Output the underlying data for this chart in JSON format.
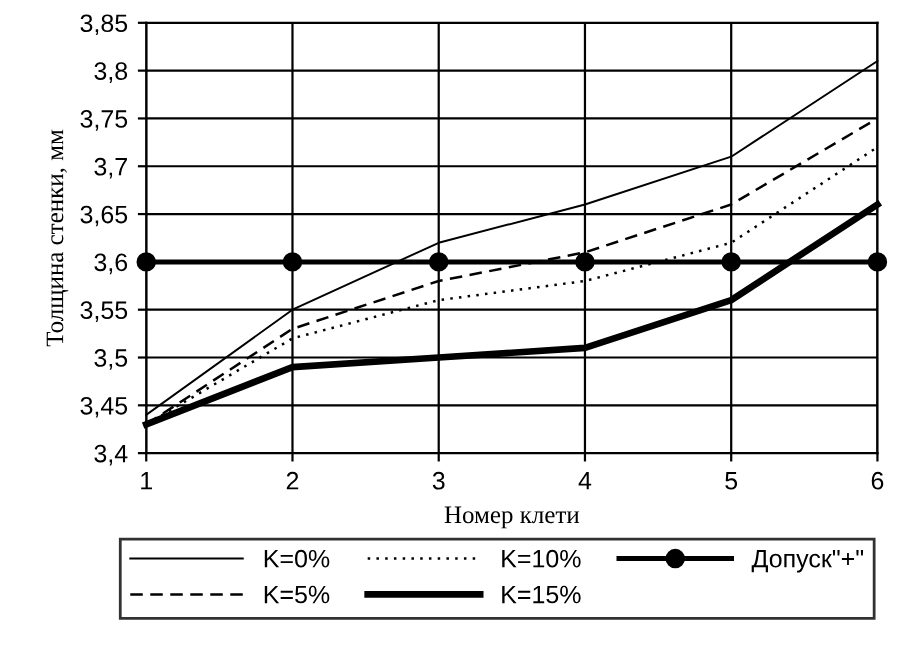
{
  "chart_data": {
    "type": "line",
    "xlabel": "Номер клети",
    "ylabel": "Толщина стенки, мм",
    "x": [
      1,
      2,
      3,
      4,
      5,
      6
    ],
    "xlim": [
      1,
      6
    ],
    "xticks": [
      1,
      2,
      3,
      4,
      5,
      6
    ],
    "ylim": [
      3.4,
      3.85
    ],
    "yticks": [
      {
        "value": 3.4,
        "label": "3,4"
      },
      {
        "value": 3.45,
        "label": "3,45"
      },
      {
        "value": 3.5,
        "label": "3,5"
      },
      {
        "value": 3.55,
        "label": "3,55"
      },
      {
        "value": 3.6,
        "label": "3,6"
      },
      {
        "value": 3.65,
        "label": "3,65"
      },
      {
        "value": 3.7,
        "label": "3,7"
      },
      {
        "value": 3.75,
        "label": "3,75"
      },
      {
        "value": 3.8,
        "label": "3,8"
      },
      {
        "value": 3.85,
        "label": "3,85"
      }
    ],
    "grid": true,
    "legend": "bottom",
    "marker": "none",
    "series": [
      {
        "name": "K=0%",
        "color": "#000000",
        "line_style": "solid",
        "values": [
          3.44,
          3.55,
          3.62,
          3.66,
          3.71,
          3.81
        ]
      },
      {
        "name": "K=5%",
        "color": "#000000",
        "line_style": "dashed",
        "values": [
          3.43,
          3.53,
          3.58,
          3.61,
          3.66,
          3.75
        ]
      },
      {
        "name": "K=10%",
        "color": "#000000",
        "line_style": "dotted",
        "values": [
          3.43,
          3.52,
          3.56,
          3.58,
          3.62,
          3.72
        ]
      },
      {
        "name": "K=15%",
        "color": "#000000",
        "line_style": "solid",
        "values": [
          3.43,
          3.49,
          3.5,
          3.51,
          3.56,
          3.66
        ]
      },
      {
        "name": "Допуск\"+\"",
        "color": "#000000",
        "line_style": "solid",
        "marker": "circle",
        "values": [
          3.6,
          3.6,
          3.6,
          3.6,
          3.6,
          3.6
        ]
      }
    ]
  }
}
